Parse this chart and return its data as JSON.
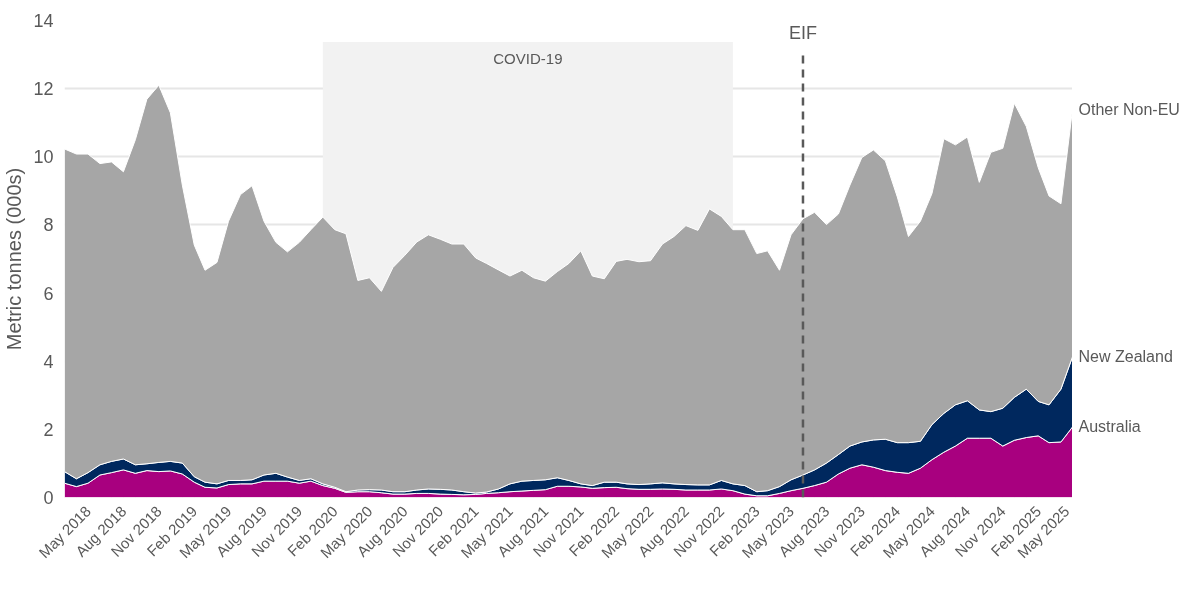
{
  "chart_data": {
    "type": "area",
    "stacked": true,
    "ylabel": "Metric tonnes (000s)",
    "x": [
      "2018-03",
      "2018-04",
      "2018-05",
      "2018-06",
      "2018-07",
      "2018-08",
      "2018-09",
      "2018-10",
      "2018-11",
      "2018-12",
      "2019-01",
      "2019-02",
      "2019-03",
      "2019-04",
      "2019-05",
      "2019-06",
      "2019-07",
      "2019-08",
      "2019-09",
      "2019-10",
      "2019-11",
      "2019-12",
      "2020-01",
      "2020-02",
      "2020-03",
      "2020-04",
      "2020-05",
      "2020-06",
      "2020-07",
      "2020-08",
      "2020-09",
      "2020-10",
      "2020-11",
      "2020-12",
      "2021-01",
      "2021-02",
      "2021-03",
      "2021-04",
      "2021-05",
      "2021-06",
      "2021-07",
      "2021-08",
      "2021-09",
      "2021-10",
      "2021-11",
      "2021-12",
      "2022-01",
      "2022-02",
      "2022-03",
      "2022-04",
      "2022-05",
      "2022-06",
      "2022-07",
      "2022-08",
      "2022-09",
      "2022-10",
      "2022-11",
      "2022-12",
      "2023-01",
      "2023-02",
      "2023-03",
      "2023-04",
      "2023-05",
      "2023-06",
      "2023-07",
      "2023-08",
      "2023-09",
      "2023-10",
      "2023-11",
      "2023-12",
      "2024-01",
      "2024-02",
      "2024-03",
      "2024-04",
      "2024-05",
      "2024-06",
      "2024-07",
      "2024-08",
      "2024-09",
      "2024-10",
      "2024-11",
      "2024-12",
      "2025-01",
      "2025-02",
      "2025-03",
      "2025-04",
      "2025-05"
    ],
    "series": [
      {
        "name": "Australia",
        "color": "#a8007f",
        "values": [
          0.42,
          0.32,
          0.42,
          0.66,
          0.73,
          0.81,
          0.71,
          0.79,
          0.76,
          0.78,
          0.69,
          0.45,
          0.3,
          0.28,
          0.38,
          0.4,
          0.4,
          0.48,
          0.48,
          0.48,
          0.42,
          0.48,
          0.35,
          0.27,
          0.15,
          0.17,
          0.17,
          0.14,
          0.1,
          0.1,
          0.12,
          0.12,
          0.1,
          0.09,
          0.08,
          0.09,
          0.12,
          0.14,
          0.17,
          0.19,
          0.21,
          0.23,
          0.33,
          0.33,
          0.31,
          0.27,
          0.29,
          0.3,
          0.26,
          0.24,
          0.24,
          0.25,
          0.24,
          0.22,
          0.22,
          0.22,
          0.25,
          0.2,
          0.1,
          0.05,
          0.05,
          0.12,
          0.2,
          0.27,
          0.35,
          0.45,
          0.69,
          0.86,
          0.96,
          0.89,
          0.79,
          0.74,
          0.71,
          0.86,
          1.11,
          1.33,
          1.51,
          1.74,
          1.74,
          1.74,
          1.51,
          1.68,
          1.76,
          1.81,
          1.61,
          1.63,
          2.07
        ]
      },
      {
        "name": "New Zealand",
        "color": "#00285e",
        "values": [
          0.34,
          0.23,
          0.31,
          0.3,
          0.33,
          0.32,
          0.25,
          0.2,
          0.27,
          0.28,
          0.32,
          0.16,
          0.15,
          0.12,
          0.12,
          0.1,
          0.12,
          0.18,
          0.23,
          0.12,
          0.08,
          0.07,
          0.05,
          0.03,
          0.02,
          0.05,
          0.06,
          0.08,
          0.07,
          0.07,
          0.1,
          0.13,
          0.14,
          0.13,
          0.09,
          0.04,
          0.04,
          0.11,
          0.23,
          0.29,
          0.29,
          0.29,
          0.25,
          0.17,
          0.09,
          0.08,
          0.16,
          0.15,
          0.14,
          0.14,
          0.16,
          0.18,
          0.16,
          0.16,
          0.15,
          0.15,
          0.25,
          0.2,
          0.25,
          0.12,
          0.15,
          0.2,
          0.32,
          0.39,
          0.46,
          0.56,
          0.57,
          0.65,
          0.67,
          0.8,
          0.92,
          0.87,
          0.9,
          0.79,
          1.03,
          1.14,
          1.21,
          1.1,
          0.83,
          0.78,
          1.11,
          1.26,
          1.42,
          1.01,
          1.11,
          1.55,
          2.06
        ]
      },
      {
        "name": "Other Non-EU",
        "color": "#a6a6a6",
        "values": [
          9.47,
          9.53,
          9.35,
          8.84,
          8.79,
          8.43,
          9.54,
          10.7,
          11.07,
          10.23,
          8.16,
          6.8,
          6.22,
          6.5,
          7.61,
          8.39,
          8.63,
          7.45,
          6.78,
          6.61,
          6.99,
          7.31,
          7.83,
          7.56,
          7.57,
          6.15,
          6.22,
          5.83,
          6.58,
          6.94,
          7.28,
          7.46,
          7.34,
          7.22,
          7.27,
          6.9,
          6.71,
          6.43,
          6.1,
          6.19,
          5.95,
          5.83,
          6.05,
          6.37,
          6.84,
          6.15,
          5.97,
          6.48,
          6.59,
          6.54,
          6.55,
          7.01,
          7.26,
          7.6,
          7.47,
          8.1,
          7.75,
          7.46,
          7.51,
          6.99,
          7.04,
          6.35,
          7.19,
          7.52,
          7.56,
          7.0,
          7.06,
          7.66,
          8.35,
          8.51,
          8.17,
          7.21,
          6.05,
          6.46,
          6.78,
          8.06,
          7.63,
          7.74,
          6.68,
          7.61,
          7.63,
          8.63,
          7.71,
          6.86,
          6.13,
          5.44,
          7.26
        ]
      }
    ],
    "xlim": [
      "2018-03",
      "2025-05"
    ],
    "xticks": [
      {
        "value": "2018-05",
        "label": "May 2018"
      },
      {
        "value": "2018-08",
        "label": "Aug 2018"
      },
      {
        "value": "2018-11",
        "label": "Nov 2018"
      },
      {
        "value": "2019-02",
        "label": "Feb 2019"
      },
      {
        "value": "2019-05",
        "label": "May 2019"
      },
      {
        "value": "2019-08",
        "label": "Aug 2019"
      },
      {
        "value": "2019-11",
        "label": "Nov 2019"
      },
      {
        "value": "2020-02",
        "label": "Feb 2020"
      },
      {
        "value": "2020-05",
        "label": "May 2020"
      },
      {
        "value": "2020-08",
        "label": "Aug 2020"
      },
      {
        "value": "2020-11",
        "label": "Nov 2020"
      },
      {
        "value": "2021-02",
        "label": "Feb 2021"
      },
      {
        "value": "2021-05",
        "label": "May 2021"
      },
      {
        "value": "2021-08",
        "label": "Aug 2021"
      },
      {
        "value": "2021-11",
        "label": "Nov 2021"
      },
      {
        "value": "2022-02",
        "label": "Feb 2022"
      },
      {
        "value": "2022-05",
        "label": "May 2022"
      },
      {
        "value": "2022-08",
        "label": "Aug 2022"
      },
      {
        "value": "2022-11",
        "label": "Nov 2022"
      },
      {
        "value": "2023-02",
        "label": "Feb 2023"
      },
      {
        "value": "2023-05",
        "label": "May 2023"
      },
      {
        "value": "2023-08",
        "label": "Aug 2023"
      },
      {
        "value": "2023-11",
        "label": "Nov 2023"
      },
      {
        "value": "2024-02",
        "label": "Feb 2024"
      },
      {
        "value": "2024-05",
        "label": "May 2024"
      },
      {
        "value": "2024-08",
        "label": "Aug 2024"
      },
      {
        "value": "2024-11",
        "label": "Nov 2024"
      },
      {
        "value": "2025-02",
        "label": "Feb 2025"
      },
      {
        "value": "2025-05",
        "label": "May 2025"
      }
    ],
    "ylim": [
      0,
      14
    ],
    "yticks": [
      0,
      2,
      4,
      6,
      8,
      10,
      12,
      14
    ],
    "grid": "y",
    "ref_lines": [
      {
        "axis": "x",
        "value": "2023-06",
        "label": "EIF",
        "color": "#595959",
        "line_style": "dashed"
      }
    ],
    "bands": [
      {
        "axis": "x",
        "from": "2020-01",
        "to": "2022-12",
        "label": "COVID-19",
        "color": "#f2f2f2"
      }
    ]
  }
}
